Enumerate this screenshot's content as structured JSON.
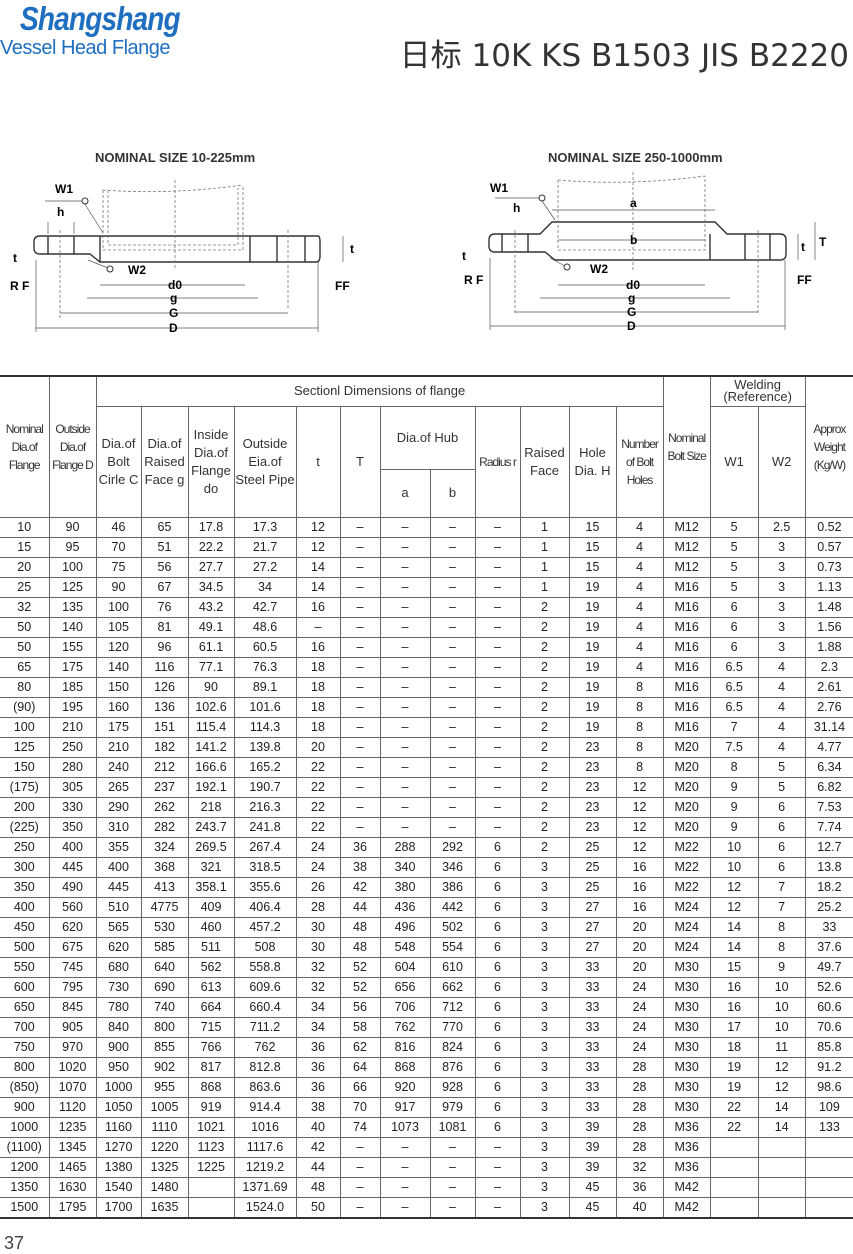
{
  "header": {
    "brand": "Shangshang",
    "subtitle": "Vessel Head Flange",
    "title": "日标 10K KS B1503 JIS B2220"
  },
  "diagrams": [
    {
      "title": "NOMINAL SIZE 10-225mm",
      "labels": {
        "w1": "W1",
        "h": "h",
        "t": "t",
        "t2": "t",
        "rf": "R F",
        "w2": "W2",
        "d0": "d0",
        "g": "g",
        "G": "G",
        "D": "D",
        "ff": "FF"
      }
    },
    {
      "title": "NOMINAL SIZE 250-1000mm",
      "labels": {
        "w1": "W1",
        "h": "h",
        "a": "a",
        "b": "b",
        "t": "t",
        "t2": "t",
        "T": "T",
        "rf": "R F",
        "w2": "W2",
        "d0": "d0",
        "g": "g",
        "G": "G",
        "D": "D",
        "ff": "FF"
      }
    }
  ],
  "table": {
    "headers": {
      "nominal": "Nominal Dia.of Flange",
      "outside": "Outside Dia.of Flange D",
      "section": "Sectionl Dimensions of flange",
      "bolt_circle": "Dia.of Bolt Cirle C",
      "raised_dia": "Dia.of Raised Face g",
      "inside": "Inside Dia.of Flange do",
      "pipe": "Outside Eia.of Steel Pipe",
      "t": "t",
      "T": "T",
      "hub": "Dia.of Hub",
      "a": "a",
      "b": "b",
      "radius": "Radius r",
      "raised_face": "Raised Face",
      "hole": "Hole Dia. H",
      "holes": "Number of Bolt Holes",
      "bolt_size": "Nominal Bolt Size",
      "welding": "Welding (Reference)",
      "w1": "W1",
      "w2": "W2",
      "weight": "Approx Weight (Kg/W)"
    },
    "rows": [
      [
        "10",
        "90",
        "46",
        "65",
        "17.8",
        "17.3",
        "12",
        "–",
        "–",
        "–",
        "–",
        "1",
        "15",
        "4",
        "M12",
        "5",
        "2.5",
        "0.52"
      ],
      [
        "15",
        "95",
        "70",
        "51",
        "22.2",
        "21.7",
        "12",
        "–",
        "–",
        "–",
        "–",
        "1",
        "15",
        "4",
        "M12",
        "5",
        "3",
        "0.57"
      ],
      [
        "20",
        "100",
        "75",
        "56",
        "27.7",
        "27.2",
        "14",
        "–",
        "–",
        "–",
        "–",
        "1",
        "15",
        "4",
        "M12",
        "5",
        "3",
        "0.73"
      ],
      [
        "25",
        "125",
        "90",
        "67",
        "34.5",
        "34",
        "14",
        "–",
        "–",
        "–",
        "–",
        "1",
        "19",
        "4",
        "M16",
        "5",
        "3",
        "1.13"
      ],
      [
        "32",
        "135",
        "100",
        "76",
        "43.2",
        "42.7",
        "16",
        "–",
        "–",
        "–",
        "–",
        "2",
        "19",
        "4",
        "M16",
        "6",
        "3",
        "1.48"
      ],
      [
        "50",
        "140",
        "105",
        "81",
        "49.1",
        "48.6",
        "–",
        "–",
        "–",
        "–",
        "–",
        "2",
        "19",
        "4",
        "M16",
        "6",
        "3",
        "1.56"
      ],
      [
        "50",
        "155",
        "120",
        "96",
        "61.1",
        "60.5",
        "16",
        "–",
        "–",
        "–",
        "–",
        "2",
        "19",
        "4",
        "M16",
        "6",
        "3",
        "1.88"
      ],
      [
        "65",
        "175",
        "140",
        "116",
        "77.1",
        "76.3",
        "18",
        "–",
        "–",
        "–",
        "–",
        "2",
        "19",
        "4",
        "M16",
        "6.5",
        "4",
        "2.3"
      ],
      [
        "80",
        "185",
        "150",
        "126",
        "90",
        "89.1",
        "18",
        "–",
        "–",
        "–",
        "–",
        "2",
        "19",
        "8",
        "M16",
        "6.5",
        "4",
        "2.61"
      ],
      [
        "(90)",
        "195",
        "160",
        "136",
        "102.6",
        "101.6",
        "18",
        "–",
        "–",
        "–",
        "–",
        "2",
        "19",
        "8",
        "M16",
        "6.5",
        "4",
        "2.76"
      ],
      [
        "100",
        "210",
        "175",
        "151",
        "115.4",
        "114.3",
        "18",
        "–",
        "–",
        "–",
        "–",
        "2",
        "19",
        "8",
        "M16",
        "7",
        "4",
        "31.14"
      ],
      [
        "125",
        "250",
        "210",
        "182",
        "141.2",
        "139.8",
        "20",
        "–",
        "–",
        "–",
        "–",
        "2",
        "23",
        "8",
        "M20",
        "7.5",
        "4",
        "4.77"
      ],
      [
        "150",
        "280",
        "240",
        "212",
        "166.6",
        "165.2",
        "22",
        "–",
        "–",
        "–",
        "–",
        "2",
        "23",
        "8",
        "M20",
        "8",
        "5",
        "6.34"
      ],
      [
        "(175)",
        "305",
        "265",
        "237",
        "192.1",
        "190.7",
        "22",
        "–",
        "–",
        "–",
        "–",
        "2",
        "23",
        "12",
        "M20",
        "9",
        "5",
        "6.82"
      ],
      [
        "200",
        "330",
        "290",
        "262",
        "218",
        "216.3",
        "22",
        "–",
        "–",
        "–",
        "–",
        "2",
        "23",
        "12",
        "M20",
        "9",
        "6",
        "7.53"
      ],
      [
        "(225)",
        "350",
        "310",
        "282",
        "243.7",
        "241.8",
        "22",
        "–",
        "–",
        "–",
        "–",
        "2",
        "23",
        "12",
        "M20",
        "9",
        "6",
        "7.74"
      ],
      [
        "250",
        "400",
        "355",
        "324",
        "269.5",
        "267.4",
        "24",
        "36",
        "288",
        "292",
        "6",
        "2",
        "25",
        "12",
        "M22",
        "10",
        "6",
        "12.7"
      ],
      [
        "300",
        "445",
        "400",
        "368",
        "321",
        "318.5",
        "24",
        "38",
        "340",
        "346",
        "6",
        "3",
        "25",
        "16",
        "M22",
        "10",
        "6",
        "13.8"
      ],
      [
        "350",
        "490",
        "445",
        "413",
        "358.1",
        "355.6",
        "26",
        "42",
        "380",
        "386",
        "6",
        "3",
        "25",
        "16",
        "M22",
        "12",
        "7",
        "18.2"
      ],
      [
        "400",
        "560",
        "510",
        "4775",
        "409",
        "406.4",
        "28",
        "44",
        "436",
        "442",
        "6",
        "3",
        "27",
        "16",
        "M24",
        "12",
        "7",
        "25.2"
      ],
      [
        "450",
        "620",
        "565",
        "530",
        "460",
        "457.2",
        "30",
        "48",
        "496",
        "502",
        "6",
        "3",
        "27",
        "20",
        "M24",
        "14",
        "8",
        "33"
      ],
      [
        "500",
        "675",
        "620",
        "585",
        "511",
        "508",
        "30",
        "48",
        "548",
        "554",
        "6",
        "3",
        "27",
        "20",
        "M24",
        "14",
        "8",
        "37.6"
      ],
      [
        "550",
        "745",
        "680",
        "640",
        "562",
        "558.8",
        "32",
        "52",
        "604",
        "610",
        "6",
        "3",
        "33",
        "20",
        "M30",
        "15",
        "9",
        "49.7"
      ],
      [
        "600",
        "795",
        "730",
        "690",
        "613",
        "609.6",
        "32",
        "52",
        "656",
        "662",
        "6",
        "3",
        "33",
        "24",
        "M30",
        "16",
        "10",
        "52.6"
      ],
      [
        "650",
        "845",
        "780",
        "740",
        "664",
        "660.4",
        "34",
        "56",
        "706",
        "712",
        "6",
        "3",
        "33",
        "24",
        "M30",
        "16",
        "10",
        "60.6"
      ],
      [
        "700",
        "905",
        "840",
        "800",
        "715",
        "711.2",
        "34",
        "58",
        "762",
        "770",
        "6",
        "3",
        "33",
        "24",
        "M30",
        "17",
        "10",
        "70.6"
      ],
      [
        "750",
        "970",
        "900",
        "855",
        "766",
        "762",
        "36",
        "62",
        "816",
        "824",
        "6",
        "3",
        "33",
        "24",
        "M30",
        "18",
        "11",
        "85.8"
      ],
      [
        "800",
        "1020",
        "950",
        "902",
        "817",
        "812.8",
        "36",
        "64",
        "868",
        "876",
        "6",
        "3",
        "33",
        "28",
        "M30",
        "19",
        "12",
        "91.2"
      ],
      [
        "(850)",
        "1070",
        "1000",
        "955",
        "868",
        "863.6",
        "36",
        "66",
        "920",
        "928",
        "6",
        "3",
        "33",
        "28",
        "M30",
        "19",
        "12",
        "98.6"
      ],
      [
        "900",
        "1120",
        "1050",
        "1005",
        "919",
        "914.4",
        "38",
        "70",
        "917",
        "979",
        "6",
        "3",
        "33",
        "28",
        "M30",
        "22",
        "14",
        "109"
      ],
      [
        "1000",
        "1235",
        "1160",
        "1110",
        "1021",
        "1016",
        "40",
        "74",
        "1073",
        "1081",
        "6",
        "3",
        "39",
        "28",
        "M36",
        "22",
        "14",
        "133"
      ],
      [
        "(1100)",
        "1345",
        "1270",
        "1220",
        "1123",
        "1117.6",
        "42",
        "–",
        "–",
        "–",
        "–",
        "3",
        "39",
        "28",
        "M36",
        "",
        "",
        ""
      ],
      [
        "1200",
        "1465",
        "1380",
        "1325",
        "1225",
        "1219.2",
        "44",
        "–",
        "–",
        "–",
        "–",
        "3",
        "39",
        "32",
        "M36",
        "",
        "",
        ""
      ],
      [
        "1350",
        "1630",
        "1540",
        "1480",
        "",
        "1371.69",
        "48",
        "–",
        "–",
        "–",
        "–",
        "3",
        "45",
        "36",
        "M42",
        "",
        "",
        ""
      ],
      [
        "1500",
        "1795",
        "1700",
        "1635",
        "",
        "1524.0",
        "50",
        "–",
        "–",
        "–",
        "–",
        "3",
        "45",
        "40",
        "M42",
        "",
        "",
        ""
      ]
    ]
  },
  "page_number": "37"
}
